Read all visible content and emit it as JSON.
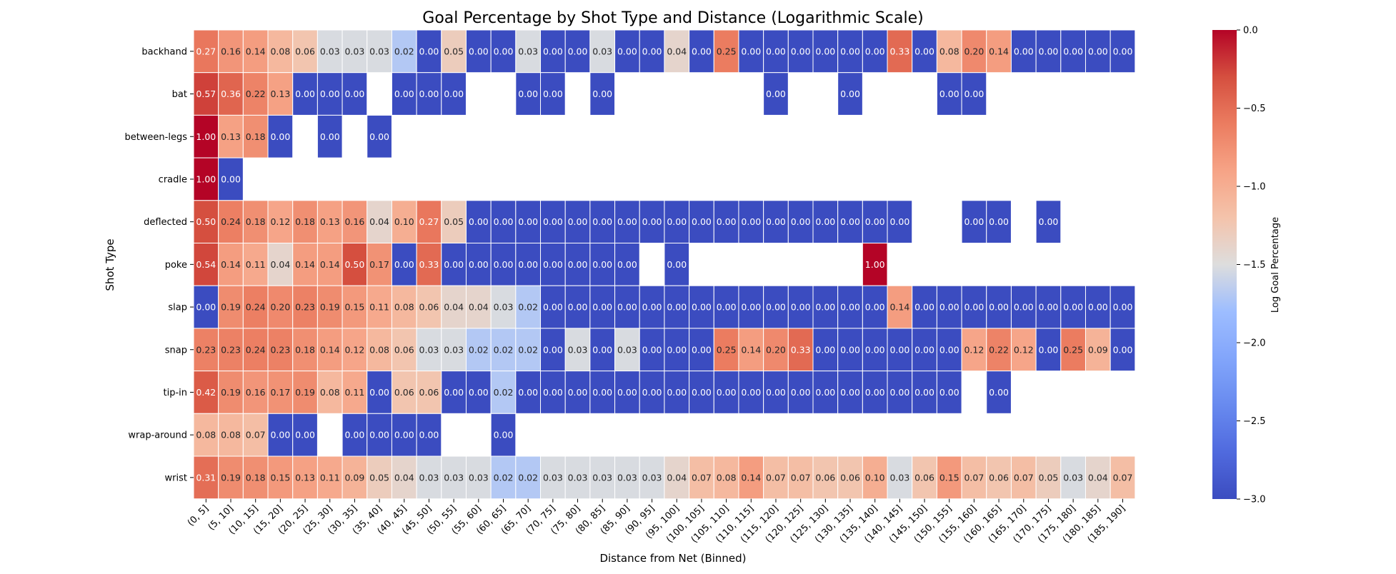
{
  "chart_data": {
    "type": "heatmap",
    "title": "Goal Percentage by Shot Type and Distance (Logarithmic Scale)",
    "xlabel": "Distance from Net (Binned)",
    "ylabel": "Shot Type",
    "colorbar_label": "Log Goal Percentage",
    "colorbar_range": [
      -3.0,
      0.0
    ],
    "colorbar_ticks": [
      "0.0",
      "−0.5",
      "−1.0",
      "−1.5",
      "−2.0",
      "−2.5",
      "−3.0"
    ],
    "colormap": "coolwarm",
    "x_categories": [
      "(0, 5]",
      "(5, 10]",
      "(10, 15]",
      "(15, 20]",
      "(20, 25]",
      "(25, 30]",
      "(30, 35]",
      "(35, 40]",
      "(40, 45]",
      "(45, 50]",
      "(50, 55]",
      "(55, 60]",
      "(60, 65]",
      "(65, 70]",
      "(70, 75]",
      "(75, 80]",
      "(80, 85]",
      "(85, 90]",
      "(90, 95]",
      "(95, 100]",
      "(100, 105]",
      "(105, 110]",
      "(110, 115]",
      "(115, 120]",
      "(120, 125]",
      "(125, 130]",
      "(130, 135]",
      "(135, 140]",
      "(140, 145]",
      "(145, 150]",
      "(150, 155]",
      "(155, 160]",
      "(160, 165]",
      "(165, 170]",
      "(170, 175]",
      "(175, 180]",
      "(180, 185]",
      "(185, 190]"
    ],
    "y_categories": [
      "backhand",
      "bat",
      "between-legs",
      "cradle",
      "deflected",
      "poke",
      "slap",
      "snap",
      "tip-in",
      "wrap-around",
      "wrist"
    ],
    "values": [
      [
        0.27,
        0.16,
        0.14,
        0.08,
        0.06,
        0.03,
        0.03,
        0.03,
        0.02,
        0.0,
        0.05,
        0.0,
        0.0,
        0.03,
        0.0,
        0.0,
        0.03,
        0.0,
        0.0,
        0.04,
        0.0,
        0.25,
        0.0,
        0.0,
        0.0,
        0.0,
        0.0,
        0.0,
        0.33,
        0.0,
        0.08,
        0.2,
        0.14,
        0.0,
        0.0,
        0.0,
        0.0,
        0.0
      ],
      [
        0.57,
        0.36,
        0.22,
        0.13,
        0.0,
        0.0,
        0.0,
        null,
        0.0,
        0.0,
        0.0,
        null,
        null,
        0.0,
        0.0,
        null,
        0.0,
        null,
        null,
        null,
        null,
        null,
        null,
        0.0,
        null,
        null,
        0.0,
        null,
        null,
        null,
        0.0,
        0.0,
        null,
        null,
        null,
        null,
        null,
        null
      ],
      [
        1.0,
        0.13,
        0.18,
        0.0,
        null,
        0.0,
        null,
        0.0,
        null,
        null,
        null,
        null,
        null,
        null,
        null,
        null,
        null,
        null,
        null,
        null,
        null,
        null,
        null,
        null,
        null,
        null,
        null,
        null,
        null,
        null,
        null,
        null,
        null,
        null,
        null,
        null,
        null,
        null
      ],
      [
        1.0,
        0.0,
        null,
        null,
        null,
        null,
        null,
        null,
        null,
        null,
        null,
        null,
        null,
        null,
        null,
        null,
        null,
        null,
        null,
        null,
        null,
        null,
        null,
        null,
        null,
        null,
        null,
        null,
        null,
        null,
        null,
        null,
        null,
        null,
        null,
        null,
        null,
        null
      ],
      [
        0.5,
        0.24,
        0.18,
        0.12,
        0.18,
        0.13,
        0.16,
        0.04,
        0.1,
        0.27,
        0.05,
        0.0,
        0.0,
        0.0,
        0.0,
        0.0,
        0.0,
        0.0,
        0.0,
        0.0,
        0.0,
        0.0,
        0.0,
        0.0,
        0.0,
        0.0,
        0.0,
        0.0,
        0.0,
        null,
        null,
        0.0,
        0.0,
        null,
        0.0,
        null,
        null,
        null
      ],
      [
        0.54,
        0.14,
        0.11,
        0.04,
        0.14,
        0.14,
        0.5,
        0.17,
        0.0,
        0.33,
        0.0,
        0.0,
        0.0,
        0.0,
        0.0,
        0.0,
        0.0,
        0.0,
        null,
        0.0,
        null,
        null,
        null,
        null,
        null,
        null,
        null,
        1.0,
        null,
        null,
        null,
        null,
        null,
        null,
        null,
        null,
        null,
        null
      ],
      [
        0.0,
        0.19,
        0.24,
        0.2,
        0.23,
        0.19,
        0.15,
        0.11,
        0.08,
        0.06,
        0.04,
        0.04,
        0.03,
        0.02,
        0.0,
        0.0,
        0.0,
        0.0,
        0.0,
        0.0,
        0.0,
        0.0,
        0.0,
        0.0,
        0.0,
        0.0,
        0.0,
        0.0,
        0.14,
        0.0,
        0.0,
        0.0,
        0.0,
        0.0,
        0.0,
        0.0,
        0.0,
        0.0
      ],
      [
        0.23,
        0.23,
        0.24,
        0.23,
        0.18,
        0.14,
        0.12,
        0.08,
        0.06,
        0.03,
        0.03,
        0.02,
        0.02,
        0.02,
        0.0,
        0.03,
        0.0,
        0.03,
        0.0,
        0.0,
        0.0,
        0.25,
        0.14,
        0.2,
        0.33,
        0.0,
        0.0,
        0.0,
        0.0,
        0.0,
        0.0,
        0.12,
        0.22,
        0.12,
        0.0,
        0.25,
        0.09,
        0.0
      ],
      [
        0.42,
        0.19,
        0.16,
        0.17,
        0.19,
        0.08,
        0.11,
        0.0,
        0.06,
        0.06,
        0.0,
        0.0,
        0.02,
        0.0,
        0.0,
        0.0,
        0.0,
        0.0,
        0.0,
        0.0,
        0.0,
        0.0,
        0.0,
        0.0,
        0.0,
        0.0,
        0.0,
        0.0,
        0.0,
        0.0,
        0.0,
        null,
        0.0,
        null,
        null,
        null,
        null,
        null
      ],
      [
        0.08,
        0.08,
        0.07,
        0.0,
        0.0,
        null,
        0.0,
        0.0,
        0.0,
        0.0,
        null,
        null,
        0.0,
        null,
        null,
        null,
        null,
        null,
        null,
        null,
        null,
        null,
        null,
        null,
        null,
        null,
        null,
        null,
        null,
        null,
        null,
        null,
        null,
        null,
        null,
        null,
        null,
        null
      ],
      [
        0.31,
        0.19,
        0.18,
        0.15,
        0.13,
        0.11,
        0.09,
        0.05,
        0.04,
        0.03,
        0.03,
        0.03,
        0.02,
        0.02,
        0.03,
        0.03,
        0.03,
        0.03,
        0.03,
        0.04,
        0.07,
        0.08,
        0.14,
        0.07,
        0.07,
        0.06,
        0.06,
        0.1,
        0.03,
        0.06,
        0.15,
        0.07,
        0.06,
        0.07,
        0.05,
        0.03,
        0.04,
        0.07
      ]
    ]
  }
}
